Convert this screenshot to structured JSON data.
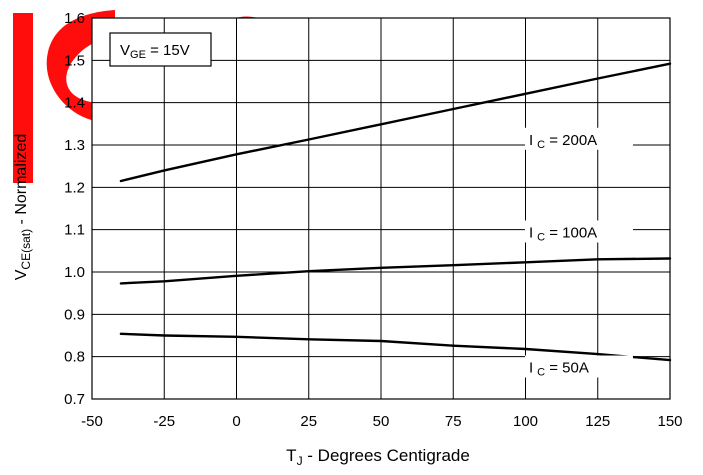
{
  "chart_data": {
    "type": "line",
    "title": "",
    "xlabel": {
      "main": "T",
      "sub": "J",
      "rest": " - Degrees Centigrade"
    },
    "ylabel": {
      "main": "V",
      "sub": "CE(sat)",
      "rest": " - Normalized"
    },
    "xlim": [
      -50,
      150
    ],
    "ylim": [
      0.7,
      1.6
    ],
    "x_ticks": [
      -50,
      -25,
      0,
      25,
      50,
      75,
      100,
      125,
      150
    ],
    "y_ticks": [
      0.7,
      0.8,
      0.9,
      1.0,
      1.1,
      1.2,
      1.3,
      1.4,
      1.5,
      1.6
    ],
    "x_tick_labels": [
      "-50",
      "-25",
      "0",
      "25",
      "50",
      "75",
      "100",
      "125",
      "150"
    ],
    "y_tick_labels": [
      "0.7",
      "0.8",
      "0.9",
      "1.0",
      "1.1",
      "1.2",
      "1.3",
      "1.4",
      "1.5",
      "1.6"
    ],
    "grid": true,
    "annotation_box": {
      "main": "V",
      "sub": "GE",
      "rest": " = 15V"
    },
    "series": [
      {
        "label_main": "I",
        "label_sub": "C",
        "label_rest": " = 200A",
        "label_at": {
          "x": 105,
          "y": 1.31
        },
        "x": [
          -40,
          -25,
          0,
          25,
          50,
          75,
          100,
          125,
          150
        ],
        "y": [
          1.215,
          1.24,
          1.278,
          1.313,
          1.349,
          1.385,
          1.421,
          1.457,
          1.492
        ]
      },
      {
        "label_main": "I",
        "label_sub": "C",
        "label_rest": " = 100A",
        "label_at": {
          "x": 105,
          "y": 1.091
        },
        "x": [
          -40,
          -25,
          0,
          25,
          50,
          75,
          100,
          125,
          150
        ],
        "y": [
          0.973,
          0.978,
          0.991,
          1.002,
          1.01,
          1.016,
          1.023,
          1.03,
          1.032
        ]
      },
      {
        "label_main": "I",
        "label_sub": "C",
        "label_rest": " = 50A",
        "label_at": {
          "x": 105,
          "y": 0.772
        },
        "x": [
          -40,
          -25,
          0,
          25,
          50,
          75,
          100,
          125,
          150
        ],
        "y": [
          0.854,
          0.85,
          0.847,
          0.841,
          0.837,
          0.826,
          0.818,
          0.806,
          0.792
        ]
      }
    ],
    "colors": {
      "line": "#000000",
      "grid": "#000000",
      "watermark": "#ff0000"
    }
  }
}
